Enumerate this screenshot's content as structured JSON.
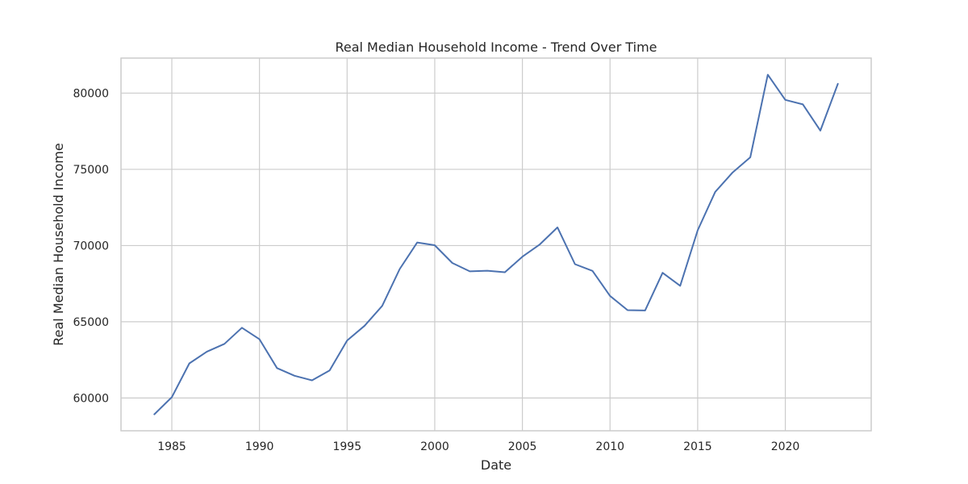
{
  "chart_data": {
    "type": "line",
    "title": "Real Median Household Income - Trend Over Time",
    "xlabel": "Date",
    "ylabel": "Real Median Household Income",
    "x_ticks": [
      "1985",
      "1990",
      "1995",
      "2000",
      "2005",
      "2010",
      "2015",
      "2020"
    ],
    "y_ticks": [
      "60000",
      "65000",
      "70000",
      "75000",
      "80000"
    ],
    "xlim": [
      1982.1,
      2024.9
    ],
    "ylim": [
      57850,
      82300
    ],
    "grid": true,
    "series": [
      {
        "color": "#4c72b0",
        "x": [
          1984,
          1985,
          1986,
          1987,
          1988,
          1989,
          1990,
          1991,
          1992,
          1993,
          1994,
          1995,
          1996,
          1997,
          1998,
          1999,
          2000,
          2001,
          2002,
          2003,
          2004,
          2005,
          2006,
          2007,
          2008,
          2009,
          2010,
          2011,
          2012,
          2013,
          2014,
          2015,
          2016,
          2017,
          2018,
          2019,
          2020,
          2021,
          2022,
          2023
        ],
        "values": [
          58930,
          60050,
          62270,
          63040,
          63550,
          64610,
          63850,
          61960,
          61460,
          61160,
          61810,
          63770,
          64740,
          66040,
          68460,
          70200,
          70020,
          68860,
          68310,
          68350,
          68250,
          69270,
          70080,
          71190,
          68780,
          68340,
          66700,
          65760,
          65740,
          68210,
          67360,
          71000,
          73520,
          74800,
          75790,
          81210,
          79560,
          79260,
          77540,
          80610
        ]
      }
    ]
  }
}
